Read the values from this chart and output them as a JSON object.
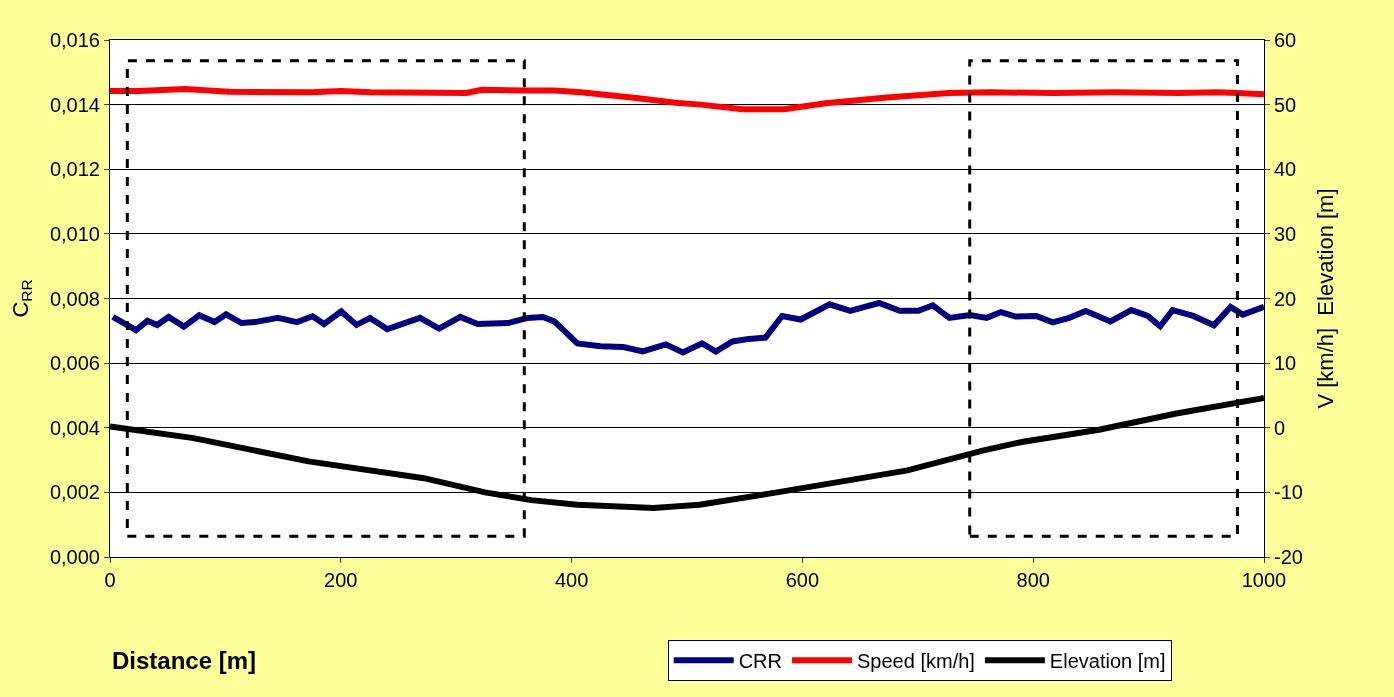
{
  "chart_data": {
    "type": "line",
    "xlabel": "Distance [m]",
    "ylabel": "C$_{RR}$",
    "y2label": "V [km/h]  Elevation [m]",
    "xlim": [
      0,
      1000
    ],
    "xticks": [
      0,
      200,
      400,
      600,
      800,
      1000
    ],
    "ylim": [
      0,
      0.016
    ],
    "yticks": [
      {
        "value": 0,
        "label": "0,000"
      },
      {
        "value": 0.002,
        "label": "0,002"
      },
      {
        "value": 0.004,
        "label": "0,004"
      },
      {
        "value": 0.006,
        "label": "0,006"
      },
      {
        "value": 0.008,
        "label": "0,008"
      },
      {
        "value": 0.01,
        "label": "0,010"
      },
      {
        "value": 0.012,
        "label": "0,012"
      },
      {
        "value": 0.014,
        "label": "0,014"
      },
      {
        "value": 0.016,
        "label": "0,016"
      }
    ],
    "y2lim": [
      -20,
      60
    ],
    "y2ticks": [
      -20,
      -10,
      0,
      10,
      20,
      30,
      40,
      50,
      60
    ],
    "grid": "y",
    "legend": "bottom",
    "marker": "none",
    "line_style": "solid",
    "series": [
      {
        "name": "CRR",
        "color": "#000080",
        "x": [
          2.5,
          22.5,
          32.5,
          40.8,
          50.8,
          64,
          77.4,
          90.6,
          100.6,
          113.9,
          125.5,
          145.5,
          162,
          175.5,
          185.5,
          200.4,
          213.7,
          225.4,
          240.3,
          255.3,
          268.6,
          285.2,
          303.5,
          318.5,
          345,
          361.7,
          375,
          385,
          405,
          425,
          445,
          461.6,
          481.6,
          496.5,
          513,
          525,
          539.4,
          553.7,
          568,
          582.4,
          598.5,
          623.6,
          641.5,
          654,
          666.4,
          684.4,
          700.5,
          713,
          727.4,
          745.3,
          759.6,
          772.1,
          784.7,
          802.6,
          816.9,
          831.2,
          845.5,
          867,
          885,
          899.3,
          910,
          920.8,
          938.7,
          956.6,
          970.9,
          981.7,
          1000
        ],
        "values": [
          0.00743,
          0.00702,
          0.00731,
          0.00718,
          0.00743,
          0.00713,
          0.00748,
          0.00727,
          0.00751,
          0.00724,
          0.00727,
          0.0074,
          0.00727,
          0.00745,
          0.00721,
          0.0076,
          0.00718,
          0.0074,
          0.00705,
          0.00724,
          0.0074,
          0.00707,
          0.00743,
          0.00721,
          0.00724,
          0.0074,
          0.00743,
          0.00729,
          0.00661,
          0.00652,
          0.0065,
          0.00636,
          0.00658,
          0.00633,
          0.00661,
          0.00636,
          0.00667,
          0.00675,
          0.00679,
          0.00746,
          0.00735,
          0.00782,
          0.00762,
          0.00774,
          0.00786,
          0.00762,
          0.00762,
          0.00779,
          0.0074,
          0.00749,
          0.0074,
          0.00758,
          0.00744,
          0.00746,
          0.00726,
          0.0074,
          0.00761,
          0.00729,
          0.00764,
          0.00746,
          0.00714,
          0.00764,
          0.00746,
          0.00717,
          0.00774,
          0.0075,
          0.00774
        ]
      },
      {
        "name": "Speed [km/h]",
        "color": "#ff0000",
        "axis": "y2",
        "x": [
          0,
          25,
          65,
          103,
          175,
          200,
          226,
          309,
          322,
          358,
          385,
          408,
          458,
          490,
          512,
          548,
          584,
          620,
          673,
          727,
          763,
          817,
          871,
          925,
          961,
          1000
        ],
        "values": [
          52.1,
          52.1,
          52.4,
          52.0,
          51.9,
          52.1,
          51.9,
          51.8,
          52.3,
          52.2,
          52.2,
          51.9,
          51.0,
          50.3,
          50.0,
          49.3,
          49.3,
          50.2,
          51.1,
          51.8,
          51.9,
          51.8,
          51.9,
          51.8,
          51.9,
          51.6
        ]
      },
      {
        "name": "Elevation [m]",
        "color": "#000000",
        "axis": "y2",
        "x": [
          0,
          72.4,
          172,
          272,
          325,
          365,
          405,
          471,
          511,
          578,
          691,
          757,
          790,
          857,
          924,
          997,
          1000
        ],
        "values": [
          0.2,
          -1.6,
          -5.2,
          -7.8,
          -10,
          -11.2,
          -11.9,
          -12.4,
          -11.9,
          -10,
          -6.6,
          -3.5,
          -2.2,
          -0.3,
          2.2,
          4.5,
          4.6
        ]
      }
    ]
  }
}
